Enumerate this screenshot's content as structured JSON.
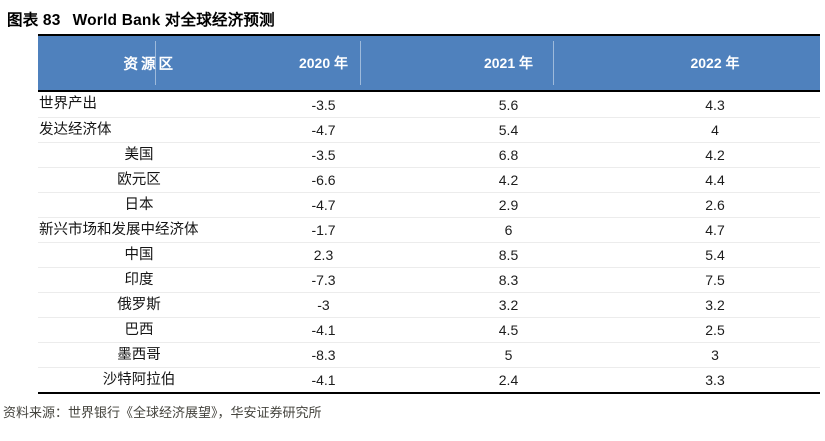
{
  "figure": {
    "tag": "图表 83",
    "title": "World Bank 对全球经济预测"
  },
  "table": {
    "header": {
      "region": "资源区",
      "years": [
        "2020 年",
        "2021 年",
        "2022 年"
      ]
    },
    "rows": [
      {
        "label": "世界产出",
        "indent": false,
        "y2020": "-3.5",
        "y2021": "5.6",
        "y2022": "4.3"
      },
      {
        "label": "发达经济体",
        "indent": false,
        "y2020": "-4.7",
        "y2021": "5.4",
        "y2022": "4"
      },
      {
        "label": "美国",
        "indent": true,
        "y2020": "-3.5",
        "y2021": "6.8",
        "y2022": "4.2"
      },
      {
        "label": "欧元区",
        "indent": true,
        "y2020": "-6.6",
        "y2021": "4.2",
        "y2022": "4.4"
      },
      {
        "label": "日本",
        "indent": true,
        "y2020": "-4.7",
        "y2021": "2.9",
        "y2022": "2.6"
      },
      {
        "label": "新兴市场和发展中经济体",
        "indent": false,
        "y2020": "-1.7",
        "y2021": "6",
        "y2022": "4.7"
      },
      {
        "label": "中国",
        "indent": true,
        "y2020": "2.3",
        "y2021": "8.5",
        "y2022": "5.4"
      },
      {
        "label": "印度",
        "indent": true,
        "y2020": "-7.3",
        "y2021": "8.3",
        "y2022": "7.5"
      },
      {
        "label": "俄罗斯",
        "indent": true,
        "y2020": "-3",
        "y2021": "3.2",
        "y2022": "3.2"
      },
      {
        "label": "巴西",
        "indent": true,
        "y2020": "-4.1",
        "y2021": "4.5",
        "y2022": "2.5"
      },
      {
        "label": "墨西哥",
        "indent": true,
        "y2020": "-8.3",
        "y2021": "5",
        "y2022": "3"
      },
      {
        "label": "沙特阿拉伯",
        "indent": true,
        "y2020": "-4.1",
        "y2021": "2.4",
        "y2022": "3.3"
      }
    ]
  },
  "source": "资料来源：世界银行《全球经济展望》，华安证券研究所",
  "colors": {
    "header_bg": "#4f81bd",
    "header_text": "#ffffff",
    "border": "#000000",
    "row_divider": "#ececec"
  }
}
